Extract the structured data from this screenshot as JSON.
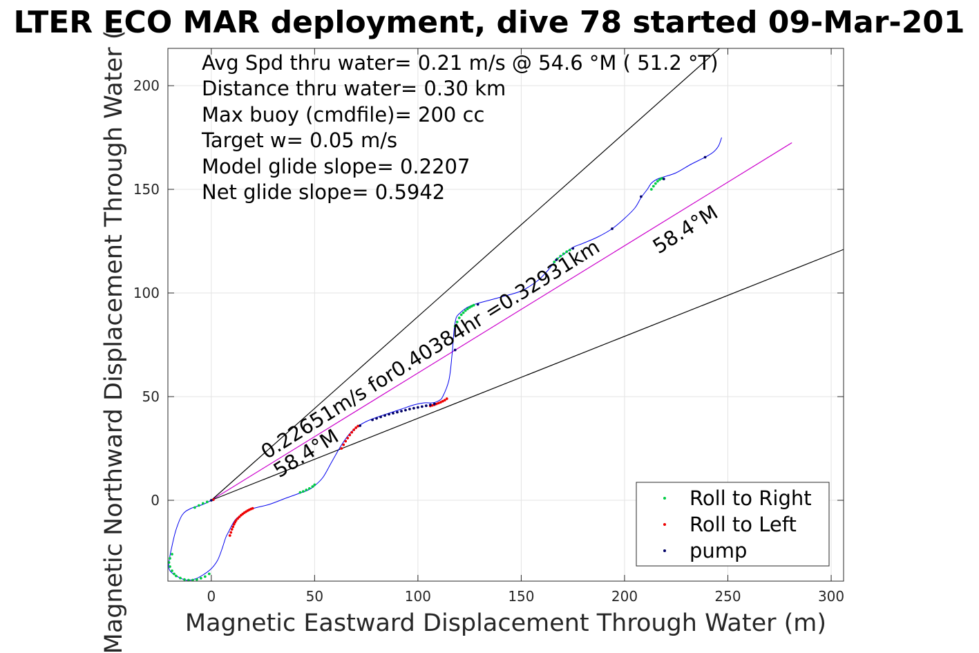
{
  "chart_data": {
    "type": "scatter",
    "title": "LTER ECO MAR deployment, dive 78 started 09-Mar-201",
    "xlabel": "Magnetic Eastward Displacement Through Water (m)",
    "ylabel": "Magnetic Northward Displacement Through Water (",
    "xlim": [
      -21,
      306
    ],
    "ylim": [
      -39,
      218
    ],
    "xticks": [
      0,
      50,
      100,
      150,
      200,
      250,
      300
    ],
    "yticks": [
      0,
      50,
      100,
      150,
      200
    ],
    "grid": true,
    "legend_position": "bottom-right",
    "stats_text": [
      "Avg Spd thru water=  0.21 m/s @  54.6 °M ( 51.2 °T)",
      "Distance thru water=  0.30 km",
      "Max buoy (cmdfile)= 200 cc",
      "Target w= 0.05 m/s",
      "Model glide slope= 0.2207",
      "Net glide slope= 0.5942"
    ],
    "annotations": {
      "speed_line": "0.22651m/s for0.40384hr =0.32931km",
      "heading_upper": "58.4°M",
      "heading_lower": "58.4°M"
    },
    "colors": {
      "track": "#0000ee",
      "roll_right": "#00cc44",
      "roll_left": "#ee0000",
      "pump": "#000066",
      "heading_line": "#cc00cc",
      "cone_lines": "#000000",
      "grid": "#e3e3e3"
    },
    "reference_lines": [
      {
        "name": "heading",
        "x": [
          0,
          281
        ],
        "y": [
          0,
          172.5
        ]
      },
      {
        "name": "cone_upper",
        "x": [
          0,
          246
        ],
        "y": [
          0,
          218
        ]
      },
      {
        "name": "cone_lower",
        "x": [
          0,
          306
        ],
        "y": [
          0,
          121
        ]
      }
    ],
    "track": {
      "x": [
        0,
        -4,
        -10,
        -14,
        -17,
        -19,
        -20.5,
        -20,
        -16,
        -12,
        -8,
        -4,
        0,
        3,
        5,
        7,
        8.5,
        10,
        12,
        16,
        20,
        28,
        36,
        43,
        47,
        50,
        54,
        58,
        62,
        66,
        70,
        75,
        80,
        86,
        92,
        98,
        103,
        107,
        110,
        112,
        115,
        116.5,
        117.5,
        118.5,
        120,
        123,
        126,
        129,
        140,
        150,
        158,
        163,
        167,
        171,
        175,
        180,
        187,
        194,
        200,
        205,
        208,
        211,
        213,
        216,
        219,
        225,
        232,
        239,
        243,
        245.5,
        247
      ],
      "y": [
        0,
        -2,
        -4,
        -7,
        -14,
        -22,
        -30,
        -34,
        -37,
        -38.5,
        -38,
        -36,
        -33,
        -29,
        -24,
        -18,
        -15,
        -12,
        -9,
        -6,
        -4,
        -2,
        1,
        3.5,
        5,
        7,
        11,
        18,
        25,
        31,
        35,
        38,
        40,
        42,
        44,
        46,
        47,
        47,
        48,
        50,
        58,
        70,
        82,
        88,
        90,
        92.5,
        94,
        95,
        98,
        101,
        106,
        111,
        116,
        119,
        122,
        124,
        127,
        131,
        136,
        141,
        146,
        150,
        153,
        155,
        156,
        158,
        162,
        165.5,
        168,
        171,
        175
      ]
    },
    "series": [
      {
        "name": "Roll to Right",
        "x": [
          -2,
          -4,
          -6,
          -8,
          -19,
          -20,
          -20.5,
          -20,
          -19,
          -18,
          -17,
          -15,
          -13,
          -11,
          -9,
          -7,
          -5,
          -3,
          -1,
          43,
          44.5,
          46,
          47.5,
          49,
          50,
          118,
          119,
          120,
          121,
          122,
          123,
          124,
          125,
          126,
          127,
          166,
          167.5,
          169,
          170.5,
          172,
          173.5,
          213,
          214,
          215,
          216,
          217,
          218
        ],
        "y": [
          -0.8,
          -1.5,
          -2.5,
          -3.5,
          -26,
          -28,
          -30,
          -32,
          -34,
          -35.5,
          -36.5,
          -37.5,
          -38.2,
          -38.5,
          -38.5,
          -38.2,
          -37.6,
          -36.8,
          -35.5,
          3.8,
          4.3,
          5,
          5.7,
          6.6,
          7.5,
          84,
          86,
          88,
          89.5,
          90.5,
          91.5,
          92.3,
          93,
          93.6,
          94.1,
          115,
          116.5,
          117.8,
          118.9,
          119.9,
          120.7,
          150,
          151.5,
          152.8,
          153.9,
          154.7,
          155.3
        ]
      },
      {
        "name": "Roll to Left",
        "x": [
          1,
          9,
          9.5,
          10,
          10.5,
          11,
          11.5,
          12,
          12.8,
          13.6,
          14.4,
          15.2,
          16,
          16.8,
          17.6,
          18.4,
          19.2,
          20,
          63,
          64,
          65,
          66,
          67,
          68,
          69,
          70,
          71,
          106,
          107,
          108,
          109,
          110,
          111,
          112,
          113,
          114
        ],
        "y": [
          0.3,
          -17,
          -15.5,
          -14,
          -12.8,
          -11.6,
          -10.6,
          -9.7,
          -8.8,
          -8,
          -7.2,
          -6.6,
          -6,
          -5.5,
          -5,
          -4.6,
          -4.2,
          -3.9,
          25,
          26.8,
          28.5,
          30,
          31.5,
          32.8,
          34,
          35,
          35.8,
          45.5,
          45.8,
          46.1,
          46.5,
          46.9,
          47.3,
          47.8,
          48.3,
          49
        ]
      },
      {
        "name": "pump",
        "x": [
          0,
          72,
          78,
          80,
          82,
          84,
          86,
          88,
          90,
          92,
          94,
          96,
          98,
          100,
          102,
          104,
          106,
          108,
          118,
          129,
          167,
          175,
          194,
          208,
          219,
          239
        ],
        "y": [
          0,
          36,
          38.8,
          39.5,
          40.2,
          40.9,
          41.5,
          42,
          42.5,
          43,
          43.5,
          44,
          44.4,
          44.8,
          45.2,
          45.6,
          46,
          46.5,
          72.5,
          94.5,
          116,
          121.5,
          131,
          146.5,
          155,
          165.5
        ]
      }
    ]
  }
}
